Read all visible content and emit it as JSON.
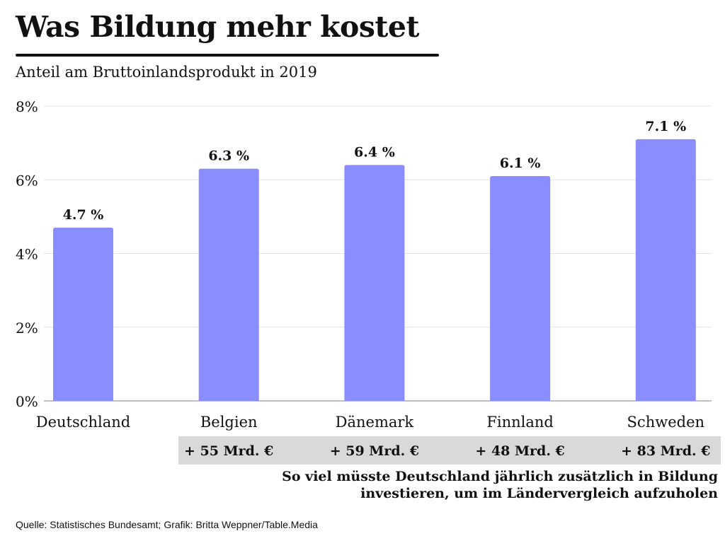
{
  "title": "Was Bildung mehr kostet",
  "subtitle": "Anteil am Bruttoinlandsprodukt in 2019",
  "note_line1": "So viel müsste Deutschland jährlich zusätzlich in Bildung",
  "note_line2": "investieren, um im Ländervergleich aufzuholen",
  "source": "Quelle: Statistisches Bundesamt; Grafik: Britta Weppner/Table.Media",
  "colors": {
    "bar": "#8a8dfd",
    "band": "#d9d9d9",
    "grid": "#e3e3e3"
  },
  "chart_data": {
    "type": "bar",
    "title": "Was Bildung mehr kostet",
    "subtitle": "Anteil am Bruttoinlandsprodukt in 2019",
    "categories": [
      "Deutschland",
      "Belgien",
      "Dänemark",
      "Finnland",
      "Schweden"
    ],
    "values": [
      4.7,
      6.3,
      6.4,
      6.1,
      7.1
    ],
    "value_labels": [
      "4.7 %",
      "6.3 %",
      "6.4 %",
      "6.1 %",
      "7.1 %"
    ],
    "extra_costs": [
      "",
      "+ 55 Mrd. €",
      "+ 59 Mrd. €",
      "+ 48 Mrd. €",
      "+ 83 Mrd. €"
    ],
    "yticks": [
      0,
      2,
      4,
      6,
      8
    ],
    "ytick_labels": [
      "0%",
      "2%",
      "4%",
      "6%",
      "8%"
    ],
    "ylim": [
      0,
      8
    ],
    "xlabel": "",
    "ylabel": "",
    "grid": true,
    "legend": "none"
  }
}
